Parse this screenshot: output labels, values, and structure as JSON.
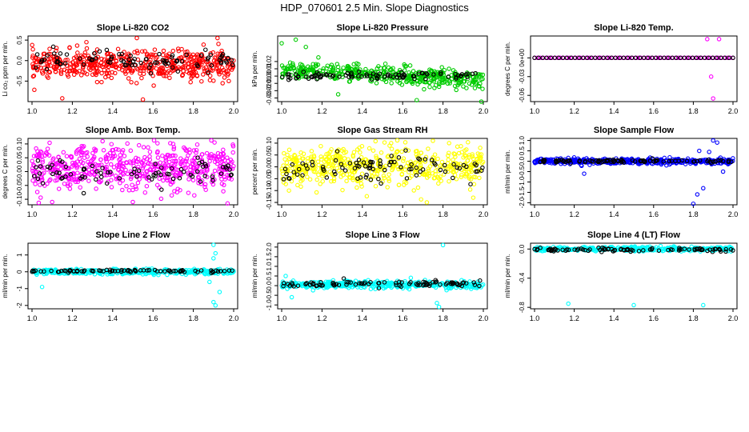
{
  "page": {
    "title": "HDP_070601  2.5 Min. Slope Diagnostics"
  },
  "chart_data": [
    {
      "type": "scatter",
      "title": "Slope Li-820 CO2",
      "ylabel": "Li co₂ ppm per min.",
      "xlim": [
        1.0,
        2.0
      ],
      "ylim": [
        -1.0,
        0.6
      ],
      "xticks": [
        "1.0",
        "1.2",
        "1.4",
        "1.6",
        "1.8",
        "2.0"
      ],
      "yticks": [
        "-0.5",
        "0.0",
        "0.5"
      ],
      "series": [
        {
          "name": "all",
          "color": "#ff0000",
          "n": 520,
          "center": -0.1,
          "spread": 0.32
        },
        {
          "name": "selected",
          "color": "#000000",
          "n": 90,
          "center": 0.0,
          "spread": 0.2
        }
      ],
      "outliers": [
        [
          1.15,
          -0.92
        ],
        [
          1.55,
          -0.95
        ],
        [
          1.52,
          0.55
        ],
        [
          1.92,
          0.55
        ],
        [
          1.27,
          0.45
        ]
      ]
    },
    {
      "type": "scatter",
      "title": "Slope Li-820 Pressure",
      "ylabel": "kPa per min.",
      "xlim": [
        1.0,
        2.0
      ],
      "ylim": [
        -0.035,
        0.055
      ],
      "xticks": [
        "1.0",
        "1.2",
        "1.4",
        "1.6",
        "1.8",
        "2.0"
      ],
      "yticks": [
        "-0.03",
        "-0.02",
        "-0.01",
        "0.00",
        "0.01",
        "0.02"
      ],
      "series": [
        {
          "name": "all",
          "color": "#00cc00",
          "n": 420,
          "center": 0.002,
          "spread": 0.011,
          "trend": -0.0014
        },
        {
          "name": "selected",
          "color": "#000000",
          "n": 90,
          "center": 0.0,
          "spread": 0.005
        }
      ],
      "outliers": [
        [
          1.07,
          0.05
        ],
        [
          1.0,
          0.045
        ],
        [
          1.12,
          0.04
        ],
        [
          1.67,
          -0.033
        ],
        [
          1.99,
          -0.035
        ],
        [
          1.28,
          -0.025
        ]
      ]
    },
    {
      "type": "scatter",
      "title": "Slope Li-820 Temp.",
      "ylabel": "degrees C per min.",
      "xlim": [
        1.0,
        2.0
      ],
      "ylim": [
        -0.07,
        0.035
      ],
      "xticks": [
        "1.0",
        "1.2",
        "1.4",
        "1.6",
        "1.8",
        "2.0"
      ],
      "yticks": [
        "-0.06",
        "-0.03",
        "0e+00"
      ],
      "series": [
        {
          "name": "all",
          "color": "#ff00ff",
          "n": 70,
          "center": 0.0,
          "spread": 0.0
        },
        {
          "name": "selected",
          "color": "#000000",
          "n": 50,
          "center": 0.0,
          "spread": 0.0
        }
      ],
      "outliers": [
        [
          1.87,
          0.03
        ],
        [
          1.93,
          0.03
        ],
        [
          1.89,
          -0.03
        ],
        [
          1.9,
          -0.065
        ]
      ]
    },
    {
      "type": "scatter",
      "title": "Slope Amb. Box Temp.",
      "ylabel": "degrees C per min.",
      "xlim": [
        1.0,
        2.0
      ],
      "ylim": [
        -0.12,
        0.12
      ],
      "xticks": [
        "1.0",
        "1.2",
        "1.4",
        "1.6",
        "1.8",
        "2.0"
      ],
      "yticks": [
        "-0.10",
        "-0.05",
        "0.00",
        "0.05",
        "0.10"
      ],
      "series": [
        {
          "name": "all",
          "color": "#ff00ff",
          "n": 560,
          "center": 0.015,
          "spread": 0.07
        },
        {
          "name": "selected",
          "color": "#000000",
          "n": 80,
          "center": -0.01,
          "spread": 0.05
        }
      ],
      "outliers": [
        [
          1.7,
          0.1
        ],
        [
          1.35,
          0.11
        ],
        [
          1.5,
          -0.11
        ],
        [
          1.97,
          -0.115
        ],
        [
          1.1,
          -0.11
        ]
      ]
    },
    {
      "type": "scatter",
      "title": "Slope Gas Stream RH",
      "ylabel": "percent per min.",
      "xlim": [
        1.0,
        2.0
      ],
      "ylim": [
        -0.16,
        0.12
      ],
      "xticks": [
        "1.0",
        "1.2",
        "1.4",
        "1.6",
        "1.8",
        "2.0"
      ],
      "yticks": [
        "-0.15",
        "-0.10",
        "-0.05",
        "0.00",
        "0.05",
        "0.10"
      ],
      "series": [
        {
          "name": "all",
          "color": "#ffff00",
          "n": 520,
          "center": 0.0,
          "spread": 0.075
        },
        {
          "name": "selected",
          "color": "#000000",
          "n": 90,
          "center": 0.0,
          "spread": 0.05
        }
      ],
      "outliers": [
        [
          1.72,
          -0.15
        ],
        [
          1.83,
          0.1
        ],
        [
          1.95,
          -0.13
        ],
        [
          1.75,
          0.11
        ]
      ]
    },
    {
      "type": "scatter",
      "title": "Slope Sample Flow",
      "ylabel": "ml/min per min.",
      "xlim": [
        1.0,
        2.0
      ],
      "ylim": [
        -2.1,
        1.1
      ],
      "xticks": [
        "1.0",
        "1.2",
        "1.4",
        "1.6",
        "1.8",
        "2.0"
      ],
      "yticks": [
        "-2.0",
        "-1.5",
        "-1.0",
        "-0.5",
        "0.0",
        "0.5",
        "1.0"
      ],
      "series": [
        {
          "name": "all",
          "color": "#0000ff",
          "n": 440,
          "center": 0.0,
          "spread": 0.12
        },
        {
          "name": "selected",
          "color": "#000000",
          "n": 90,
          "center": 0.0,
          "spread": 0.07
        }
      ],
      "outliers": [
        [
          1.9,
          1.0
        ],
        [
          1.92,
          0.9
        ],
        [
          1.83,
          0.5
        ],
        [
          1.85,
          -1.3
        ],
        [
          1.82,
          -1.6
        ],
        [
          1.8,
          -2.05
        ],
        [
          1.25,
          -0.6
        ],
        [
          1.95,
          -0.5
        ],
        [
          1.88,
          0.45
        ]
      ]
    },
    {
      "type": "scatter",
      "title": "Slope Line 2 Flow",
      "ylabel": "ml/min per min.",
      "xlim": [
        1.0,
        2.0
      ],
      "ylim": [
        -2.2,
        1.7
      ],
      "xticks": [
        "1.0",
        "1.2",
        "1.4",
        "1.6",
        "1.8",
        "2.0"
      ],
      "yticks": [
        "-2",
        "-1",
        "0",
        "1"
      ],
      "series": [
        {
          "name": "all",
          "color": "#00ffff",
          "n": 380,
          "center": 0.0,
          "spread": 0.14
        },
        {
          "name": "selected",
          "color": "#000000",
          "n": 80,
          "center": 0.05,
          "spread": 0.07
        }
      ],
      "outliers": [
        [
          1.9,
          1.6
        ],
        [
          1.91,
          1.1
        ],
        [
          1.9,
          -1.8
        ],
        [
          1.91,
          -2.0
        ],
        [
          1.88,
          -0.6
        ],
        [
          1.93,
          -1.2
        ],
        [
          1.05,
          -0.9
        ],
        [
          1.9,
          0.8
        ]
      ]
    },
    {
      "type": "scatter",
      "title": "Slope Line 3 Flow",
      "ylabel": "ml/min per min.",
      "xlim": [
        1.0,
        2.0
      ],
      "ylim": [
        -1.2,
        2.2
      ],
      "xticks": [
        "1.0",
        "1.2",
        "1.4",
        "1.6",
        "1.8",
        "2.0"
      ],
      "yticks": [
        "-1.0",
        "-0.5",
        "0.0",
        "0.5",
        "1.0",
        "1.5",
        "2.0"
      ],
      "series": [
        {
          "name": "all",
          "color": "#00ffff",
          "n": 420,
          "center": 0.05,
          "spread": 0.17
        },
        {
          "name": "selected",
          "color": "#000000",
          "n": 90,
          "center": 0.1,
          "spread": 0.15
        }
      ],
      "outliers": [
        [
          1.8,
          2.1
        ],
        [
          1.78,
          -1.1
        ],
        [
          1.77,
          -0.9
        ],
        [
          1.02,
          0.5
        ],
        [
          1.05,
          -0.6
        ]
      ]
    },
    {
      "type": "scatter",
      "title": "Slope Line 4 (LT) Flow",
      "ylabel": "ml/min per min.",
      "xlim": [
        1.0,
        2.0
      ],
      "ylim": [
        -0.82,
        0.08
      ],
      "xticks": [
        "1.0",
        "1.2",
        "1.4",
        "1.6",
        "1.8",
        "2.0"
      ],
      "yticks": [
        "-0.8",
        "-0.4",
        "0.0"
      ],
      "series": [
        {
          "name": "all",
          "color": "#00ffff",
          "n": 420,
          "center": 0.0,
          "spread": 0.025
        },
        {
          "name": "selected",
          "color": "#000000",
          "n": 90,
          "center": -0.01,
          "spread": 0.02
        }
      ],
      "outliers": [
        [
          1.17,
          -0.75
        ],
        [
          1.5,
          -0.77
        ],
        [
          1.85,
          -0.77
        ]
      ]
    }
  ]
}
